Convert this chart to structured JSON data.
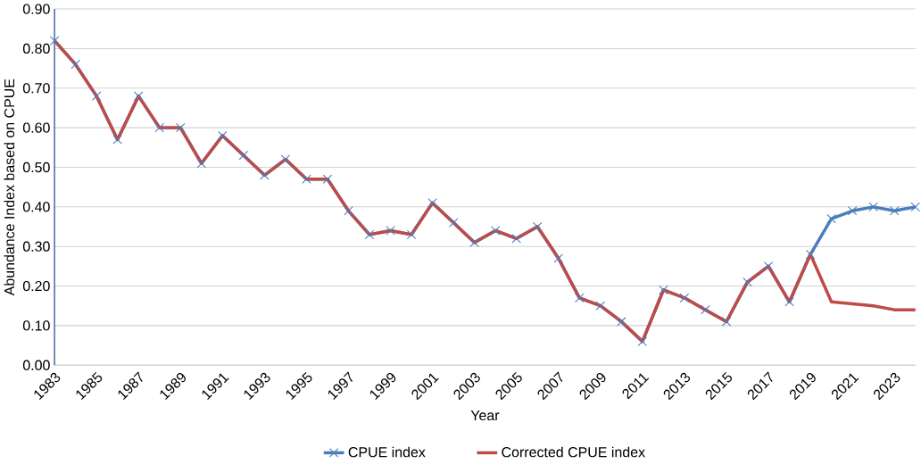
{
  "chart_data": {
    "type": "line",
    "xlabel": "Year",
    "ylabel": "Abundance Index based on CPUE",
    "categories": [
      "1983",
      null,
      "1985",
      null,
      "1987",
      null,
      "1989",
      null,
      "1991",
      null,
      "1993",
      null,
      "1995",
      null,
      "1997",
      null,
      "1999",
      null,
      "2001",
      null,
      "2003",
      null,
      "2005",
      null,
      "2007",
      null,
      "2009",
      null,
      "2011",
      null,
      "2013",
      null,
      "2015",
      null,
      "2017",
      null,
      "2019",
      null,
      "2021",
      null,
      "2023",
      null
    ],
    "series": [
      {
        "name": "CPUE index",
        "color": "#4a7ebb",
        "marker": "cross",
        "values": [
          0.82,
          0.76,
          0.68,
          0.57,
          0.68,
          0.6,
          0.6,
          0.51,
          0.58,
          0.53,
          0.48,
          0.52,
          0.47,
          0.47,
          0.39,
          0.33,
          0.34,
          0.33,
          0.41,
          0.36,
          0.31,
          0.34,
          0.32,
          0.35,
          0.27,
          0.17,
          0.15,
          0.11,
          0.06,
          0.19,
          0.17,
          0.14,
          0.11,
          0.21,
          0.25,
          0.16,
          0.28,
          0.37,
          0.39,
          0.4,
          0.39,
          0.4
        ]
      },
      {
        "name": "Corrected CPUE index",
        "color": "#be4b48",
        "marker": "none",
        "values": [
          0.82,
          0.76,
          0.68,
          0.57,
          0.68,
          0.6,
          0.6,
          0.51,
          0.58,
          0.53,
          0.48,
          0.52,
          0.47,
          0.47,
          0.39,
          0.33,
          0.34,
          0.33,
          0.41,
          0.36,
          0.31,
          0.34,
          0.32,
          0.35,
          0.27,
          0.17,
          0.15,
          0.11,
          0.06,
          0.19,
          0.17,
          0.14,
          0.11,
          0.21,
          0.25,
          0.16,
          0.28,
          0.16,
          0.155,
          0.15,
          0.14,
          0.14
        ]
      }
    ],
    "ylim": [
      0,
      0.9
    ],
    "yticks": [
      {
        "value": 0,
        "label": "0.00"
      },
      {
        "value": 0.1,
        "label": "0.10"
      },
      {
        "value": 0.2,
        "label": "0.20"
      },
      {
        "value": 0.3,
        "label": "0.30"
      },
      {
        "value": 0.4,
        "label": "0.40"
      },
      {
        "value": 0.5,
        "label": "0.50"
      },
      {
        "value": 0.6,
        "label": "0.60"
      },
      {
        "value": 0.7,
        "label": "0.70"
      },
      {
        "value": 0.8,
        "label": "0.80"
      },
      {
        "value": 0.9,
        "label": "0.90"
      }
    ],
    "grid": "y",
    "legend": "bottom"
  }
}
